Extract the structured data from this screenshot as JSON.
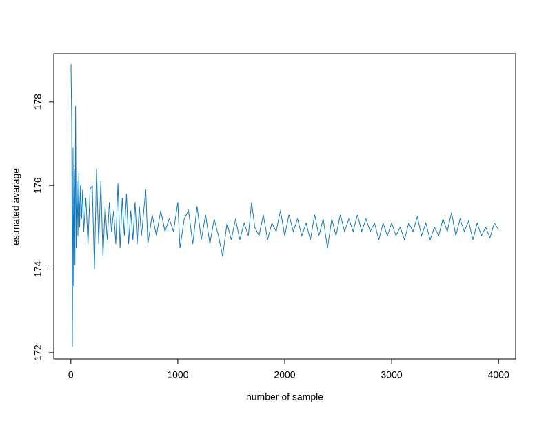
{
  "chart_data": {
    "type": "line",
    "xlabel": "number of sample",
    "ylabel": "estmated avarage",
    "x": [
      1,
      8,
      14,
      20,
      26,
      32,
      38,
      44,
      50,
      58,
      66,
      74,
      82,
      90,
      100,
      110,
      120,
      140,
      160,
      180,
      200,
      220,
      240,
      260,
      280,
      300,
      320,
      340,
      360,
      380,
      400,
      420,
      440,
      460,
      480,
      500,
      520,
      540,
      560,
      580,
      600,
      620,
      640,
      660,
      700,
      720,
      760,
      800,
      840,
      880,
      920,
      960,
      1000,
      1020,
      1060,
      1100,
      1140,
      1180,
      1220,
      1260,
      1300,
      1340,
      1380,
      1420,
      1460,
      1500,
      1540,
      1580,
      1620,
      1660,
      1690,
      1720,
      1760,
      1800,
      1840,
      1880,
      1920,
      1960,
      2000,
      2040,
      2080,
      2120,
      2160,
      2200,
      2240,
      2280,
      2320,
      2360,
      2400,
      2440,
      2480,
      2520,
      2560,
      2600,
      2640,
      2680,
      2720,
      2760,
      2800,
      2840,
      2880,
      2920,
      2960,
      3000,
      3040,
      3080,
      3120,
      3160,
      3200,
      3240,
      3280,
      3320,
      3360,
      3400,
      3440,
      3480,
      3520,
      3560,
      3600,
      3640,
      3680,
      3720,
      3760,
      3800,
      3840,
      3880,
      3920,
      3960,
      4000
    ],
    "values": [
      178.9,
      177.5,
      172.15,
      176.9,
      173.6,
      176.4,
      174.1,
      177.9,
      174.5,
      176.1,
      174.8,
      176.3,
      175.0,
      176.0,
      175.2,
      175.9,
      174.9,
      175.7,
      174.6,
      175.9,
      176.0,
      174.0,
      176.4,
      174.6,
      176.1,
      174.3,
      175.5,
      174.7,
      175.6,
      174.9,
      175.4,
      174.6,
      176.05,
      174.5,
      175.7,
      174.8,
      175.8,
      174.6,
      175.4,
      174.7,
      175.6,
      174.6,
      175.5,
      174.8,
      175.9,
      174.6,
      175.3,
      174.8,
      175.4,
      174.9,
      175.2,
      174.9,
      175.6,
      174.5,
      175.2,
      175.4,
      174.6,
      175.5,
      174.7,
      175.3,
      174.6,
      175.2,
      174.8,
      174.3,
      175.1,
      174.7,
      175.2,
      174.7,
      175.1,
      174.8,
      175.6,
      175.0,
      174.8,
      175.3,
      174.7,
      175.1,
      174.9,
      175.4,
      174.8,
      175.3,
      174.9,
      175.2,
      174.8,
      175.1,
      174.7,
      175.3,
      174.8,
      175.2,
      174.5,
      175.2,
      174.8,
      175.3,
      174.9,
      175.2,
      174.9,
      175.3,
      174.9,
      175.2,
      174.9,
      175.1,
      174.7,
      175.1,
      174.8,
      175.1,
      174.8,
      175.0,
      174.7,
      175.1,
      174.9,
      175.25,
      174.8,
      175.1,
      174.7,
      175.0,
      174.8,
      175.2,
      174.9,
      175.35,
      174.8,
      175.2,
      174.9,
      175.15,
      174.7,
      175.1,
      174.8,
      175.0,
      174.75,
      175.1,
      174.95
    ],
    "color": "#1079c0",
    "xlim": [
      -160,
      4160
    ],
    "xticks": [
      0,
      1000,
      2000,
      3000,
      4000
    ],
    "ylim": [
      171.85,
      179.15
    ],
    "yticks": [
      172,
      174,
      176,
      178
    ]
  }
}
